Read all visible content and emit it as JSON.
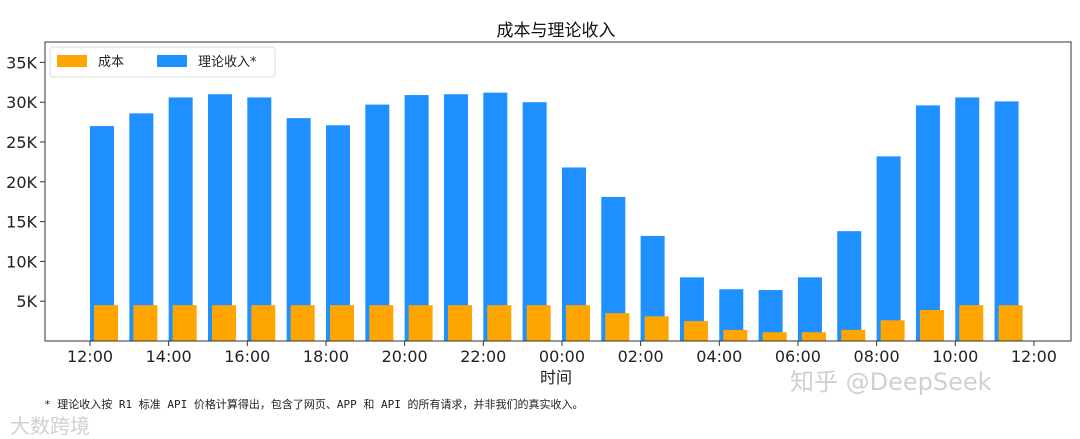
{
  "chart_data": {
    "type": "bar",
    "title": "成本与理论收入",
    "xlabel": "时间",
    "ylabel": "",
    "ylim": [
      0,
      37500
    ],
    "yticks": [
      5000,
      10000,
      15000,
      20000,
      25000,
      30000,
      35000
    ],
    "ytick_labels": [
      "5K",
      "10K",
      "15K",
      "20K",
      "25K",
      "30K",
      "35K"
    ],
    "xtick_labels": [
      "12:00",
      "14:00",
      "16:00",
      "18:00",
      "20:00",
      "22:00",
      "00:00",
      "02:00",
      "04:00",
      "06:00",
      "08:00",
      "10:00",
      "12:00"
    ],
    "categories": [
      "12:00",
      "13:00",
      "14:00",
      "15:00",
      "16:00",
      "17:00",
      "18:00",
      "19:00",
      "20:00",
      "21:00",
      "22:00",
      "23:00",
      "00:00",
      "01:00",
      "02:00",
      "03:00",
      "04:00",
      "05:00",
      "06:00",
      "07:00",
      "08:00",
      "09:00",
      "10:00",
      "11:00"
    ],
    "series": [
      {
        "name": "成本",
        "color": "#FFA500",
        "values": [
          4500,
          4500,
          4500,
          4500,
          4500,
          4500,
          4500,
          4500,
          4500,
          4500,
          4500,
          4500,
          4500,
          3500,
          3100,
          2500,
          1400,
          1100,
          1100,
          1400,
          2600,
          3900,
          4500,
          4500
        ]
      },
      {
        "name": "理论收入*",
        "color": "#1E90FF",
        "values": [
          27000,
          28600,
          30600,
          31000,
          30600,
          28000,
          27100,
          29700,
          30900,
          31000,
          31200,
          30000,
          21800,
          18100,
          13200,
          8000,
          6500,
          6400,
          8000,
          13800,
          23200,
          29600,
          30600,
          30100
        ]
      }
    ],
    "legend": "top-left",
    "grid": false
  },
  "footnote": "* 理论收入按 R1 标准 API 价格计算得出，包含了网页、APP 和 API 的所有请求，并非我们的真实收入。",
  "watermarks": [
    "知乎 @DeepSeek",
    "大数跨境"
  ]
}
